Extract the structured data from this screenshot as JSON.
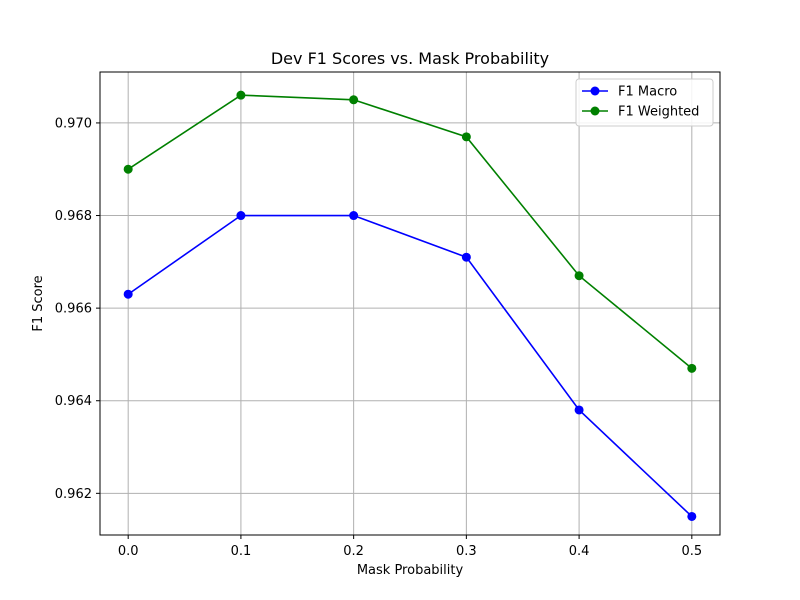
{
  "chart_data": {
    "type": "line",
    "title": "Dev F1 Scores vs. Mask Probability",
    "xlabel": "Mask Probability",
    "ylabel": "F1 Score",
    "x": [
      0.0,
      0.1,
      0.2,
      0.3,
      0.4,
      0.5
    ],
    "x_tick_labels": [
      "0.0",
      "0.1",
      "0.2",
      "0.3",
      "0.4",
      "0.5"
    ],
    "y_ticks": [
      0.962,
      0.964,
      0.966,
      0.968,
      0.97
    ],
    "y_tick_labels": [
      "0.962",
      "0.964",
      "0.966",
      "0.968",
      "0.970"
    ],
    "xlim": [
      -0.025,
      0.525
    ],
    "ylim": [
      0.9611,
      0.9711
    ],
    "grid": true,
    "legend_position": "top-right",
    "series": [
      {
        "name": "F1 Macro",
        "color": "#0000ff",
        "marker": "circle",
        "values": [
          0.9663,
          0.968,
          0.968,
          0.9671,
          0.9638,
          0.9615
        ]
      },
      {
        "name": "F1 Weighted",
        "color": "#008000",
        "marker": "circle",
        "values": [
          0.969,
          0.9706,
          0.9705,
          0.9697,
          0.9667,
          0.9647
        ]
      }
    ]
  }
}
